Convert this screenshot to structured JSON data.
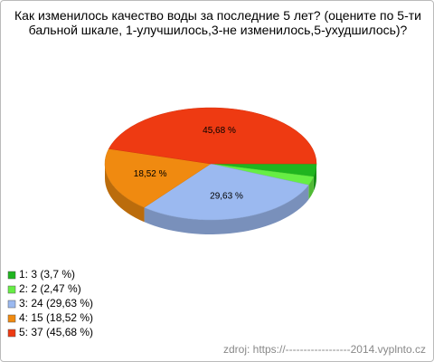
{
  "chart_data": {
    "type": "pie3d",
    "title": "Как изменилось качество воды за последние 5 лет? (оцените по 5-ти бальной шкале, 1-улучшилось,3-не изменилось,5-ухудшилось)?",
    "categories": [
      "1",
      "2",
      "3",
      "4",
      "5"
    ],
    "values": [
      3.7,
      2.47,
      29.63,
      18.52,
      45.68
    ],
    "value_labels": [
      null,
      null,
      "29,63 %",
      "18,52 %",
      "45,68 %"
    ],
    "legend": [
      "1: 3 (3,7 %)",
      "2: 2 (2,47 %)",
      "3: 24 (29,63 %)",
      "4: 15 (18,52 %)",
      "5: 37 (45,68 %)"
    ],
    "colors": [
      "#1fb51f",
      "#66ee44",
      "#9bb9f0",
      "#f08a10",
      "#ee3a12"
    ],
    "source": "zdroj: https://------------------2014.vyplnto.cz"
  }
}
